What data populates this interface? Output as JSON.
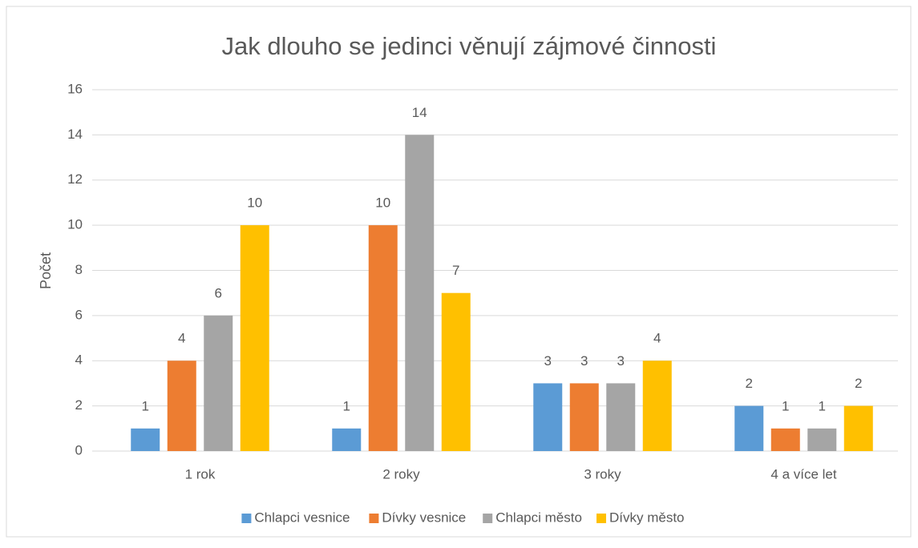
{
  "chart_data": {
    "type": "bar",
    "title": "Jak dlouho se jedinci věnují zájmové činnosti",
    "y_label": "Počet",
    "categories": [
      "1 rok",
      "2 roky",
      "3 roky",
      "4 a více let"
    ],
    "series": [
      {
        "name": "Chlapci vesnice",
        "color": "#5b9bd5",
        "values": [
          1,
          1,
          3,
          2
        ]
      },
      {
        "name": "Dívky vesnice",
        "color": "#ed7d31",
        "values": [
          4,
          10,
          3,
          1
        ]
      },
      {
        "name": "Chlapci město",
        "color": "#a5a5a5",
        "values": [
          6,
          14,
          3,
          1
        ]
      },
      {
        "name": "Dívky město",
        "color": "#ffc000",
        "values": [
          10,
          7,
          4,
          2
        ]
      }
    ],
    "ylim": [
      0,
      16
    ],
    "yticks": [
      0,
      2,
      4,
      6,
      8,
      10,
      12,
      14,
      16
    ],
    "grid": true,
    "legend": "bottom"
  }
}
